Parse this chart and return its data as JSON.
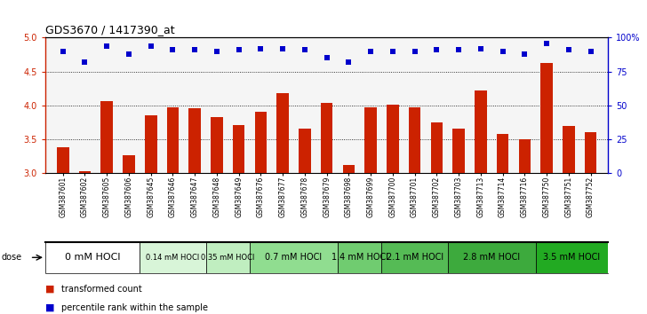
{
  "title": "GDS3670 / 1417390_at",
  "samples": [
    "GSM387601",
    "GSM387602",
    "GSM387605",
    "GSM387606",
    "GSM387645",
    "GSM387646",
    "GSM387647",
    "GSM387648",
    "GSM387649",
    "GSM387676",
    "GSM387677",
    "GSM387678",
    "GSM387679",
    "GSM387698",
    "GSM387699",
    "GSM387700",
    "GSM387701",
    "GSM387702",
    "GSM387703",
    "GSM387713",
    "GSM387714",
    "GSM387716",
    "GSM387750",
    "GSM387751",
    "GSM387752"
  ],
  "bar_values": [
    3.38,
    3.02,
    4.06,
    3.26,
    3.85,
    3.97,
    3.95,
    3.83,
    3.7,
    3.9,
    4.18,
    3.65,
    4.04,
    3.12,
    3.97,
    4.01,
    3.97,
    3.75,
    3.65,
    4.22,
    3.57,
    3.5,
    4.62,
    3.69,
    3.6
  ],
  "percentile_values_pct": [
    90,
    82,
    94,
    88,
    94,
    91,
    91,
    90,
    91,
    92,
    92,
    91,
    85,
    82,
    90,
    90,
    90,
    91,
    91,
    92,
    90,
    88,
    96,
    91,
    90
  ],
  "dose_groups": [
    {
      "label": "0 mM HOCl",
      "start": 0,
      "end": 4,
      "color": "#ffffff",
      "fontsize": 8
    },
    {
      "label": "0.14 mM HOCl",
      "start": 4,
      "end": 7,
      "color": "#d8f5d8",
      "fontsize": 6
    },
    {
      "label": "0.35 mM HOCl",
      "start": 7,
      "end": 9,
      "color": "#c0eec0",
      "fontsize": 6
    },
    {
      "label": "0.7 mM HOCl",
      "start": 9,
      "end": 13,
      "color": "#90dd90",
      "fontsize": 7
    },
    {
      "label": "1.4 mM HOCl",
      "start": 13,
      "end": 15,
      "color": "#70cc70",
      "fontsize": 7
    },
    {
      "label": "2.1 mM HOCl",
      "start": 15,
      "end": 18,
      "color": "#55bb55",
      "fontsize": 7
    },
    {
      "label": "2.8 mM HOCl",
      "start": 18,
      "end": 22,
      "color": "#3daa3d",
      "fontsize": 7
    },
    {
      "label": "3.5 mM HOCl",
      "start": 22,
      "end": 25,
      "color": "#22aa22",
      "fontsize": 7
    }
  ],
  "ylim": [
    3.0,
    5.0
  ],
  "yticks_left": [
    3.0,
    3.5,
    4.0,
    4.5,
    5.0
  ],
  "yticks_right": [
    0,
    25,
    50,
    75,
    100
  ],
  "bar_color": "#cc2200",
  "dot_color": "#0000cc",
  "bg_color": "#f5f5f5",
  "ylabel_right_color": "#0000cc",
  "ylabel_left_color": "#cc2200"
}
